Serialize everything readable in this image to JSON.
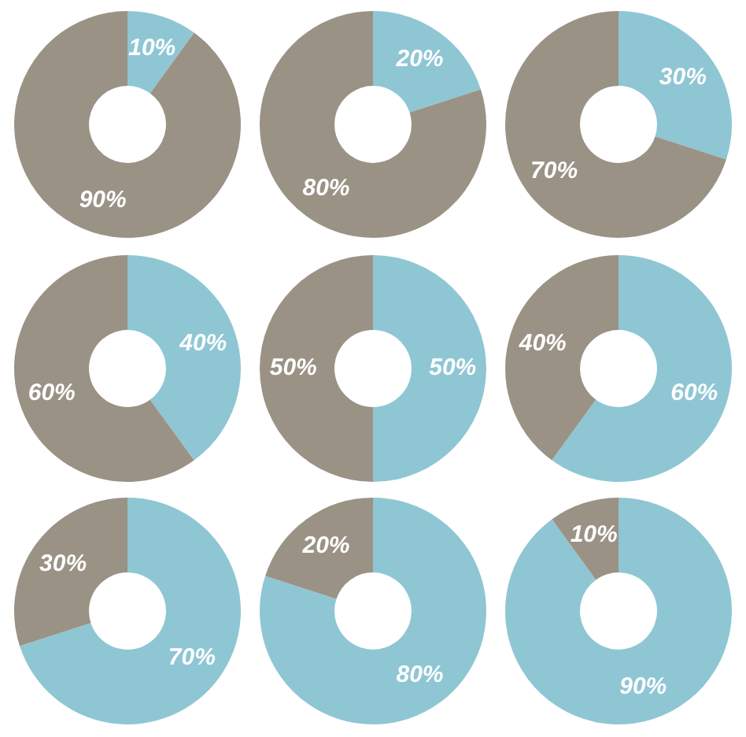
{
  "chart_data": [
    {
      "type": "donut",
      "categories": [
        null,
        null
      ],
      "values": [
        10,
        90
      ],
      "colors": [
        "#8fc6d4",
        "#9b9286"
      ],
      "value_labels": [
        "10%",
        "90%"
      ]
    },
    {
      "type": "donut",
      "categories": [
        null,
        null
      ],
      "values": [
        20,
        80
      ],
      "colors": [
        "#8fc6d4",
        "#9b9286"
      ],
      "value_labels": [
        "20%",
        "80%"
      ]
    },
    {
      "type": "donut",
      "categories": [
        null,
        null
      ],
      "values": [
        30,
        70
      ],
      "colors": [
        "#8fc6d4",
        "#9b9286"
      ],
      "value_labels": [
        "30%",
        "70%"
      ]
    },
    {
      "type": "donut",
      "categories": [
        null,
        null
      ],
      "values": [
        40,
        60
      ],
      "colors": [
        "#8fc6d4",
        "#9b9286"
      ],
      "value_labels": [
        "40%",
        "60%"
      ]
    },
    {
      "type": "donut",
      "categories": [
        null,
        null
      ],
      "values": [
        50,
        50
      ],
      "colors": [
        "#8fc6d4",
        "#9b9286"
      ],
      "value_labels": [
        "50%",
        "50%"
      ]
    },
    {
      "type": "donut",
      "categories": [
        null,
        null
      ],
      "values": [
        60,
        40
      ],
      "colors": [
        "#8fc6d4",
        "#9b9286"
      ],
      "value_labels": [
        "60%",
        "40%"
      ]
    },
    {
      "type": "donut",
      "categories": [
        null,
        null
      ],
      "values": [
        70,
        30
      ],
      "colors": [
        "#8fc6d4",
        "#9b9286"
      ],
      "value_labels": [
        "70%",
        "30%"
      ]
    },
    {
      "type": "donut",
      "categories": [
        null,
        null
      ],
      "values": [
        80,
        20
      ],
      "colors": [
        "#8fc6d4",
        "#9b9286"
      ],
      "value_labels": [
        "80%",
        "20%"
      ]
    },
    {
      "type": "donut",
      "categories": [
        null,
        null
      ],
      "values": [
        90,
        10
      ],
      "colors": [
        "#8fc6d4",
        "#9b9286"
      ],
      "value_labels": [
        "90%",
        "10%"
      ]
    }
  ]
}
